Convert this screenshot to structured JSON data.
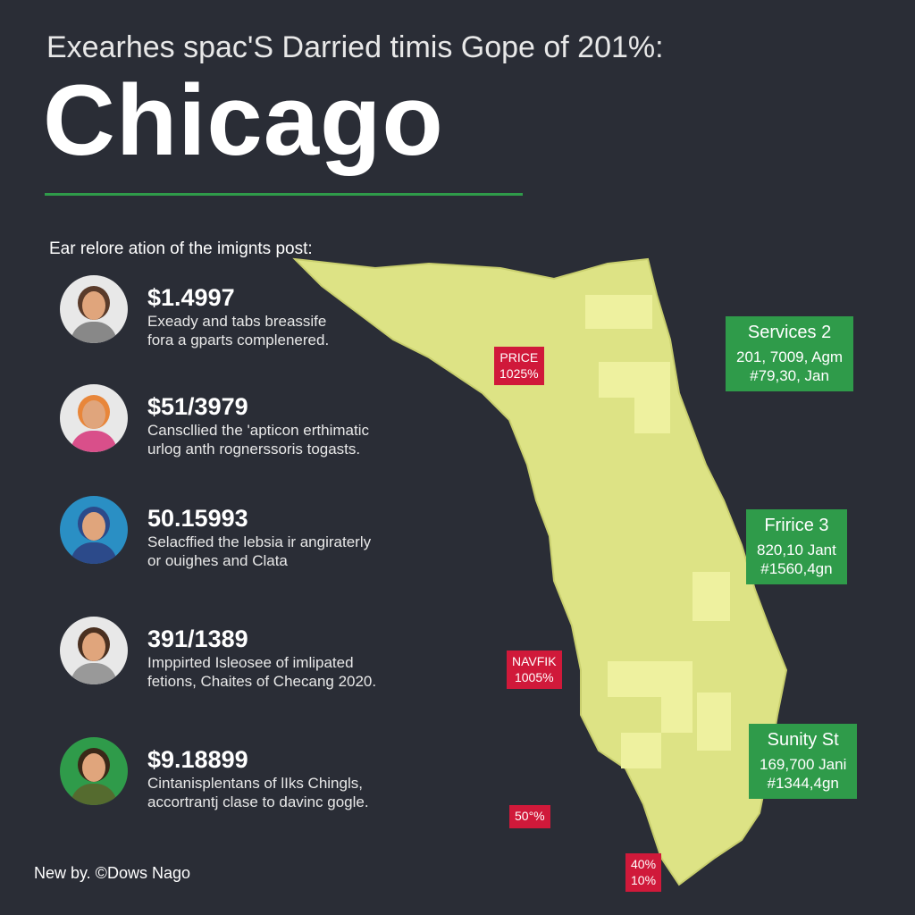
{
  "header": {
    "subtitle": "Exearhes spac'S Darried timis Gope of 201%:",
    "title": "Chicago"
  },
  "section_label": "Ear relore ation of the imignts post:",
  "items": [
    {
      "value": "$1.4997",
      "lines": [
        "Exeady and tabs breassife",
        "fora a gparts complenered."
      ]
    },
    {
      "value": "$51/3979",
      "lines": [
        "Canscllied the 'apticon erthimatic",
        "urlog anth rognerssoris togasts."
      ]
    },
    {
      "value": "50.15993",
      "lines": [
        "Selacffied the lebsia ir angiraterly",
        "or ouighes and Clata"
      ]
    },
    {
      "value": "391/1389",
      "lines": [
        "Imppirted Isleosee of imlipated",
        "fetions, Chaites of Checang 2020."
      ]
    },
    {
      "value": "$9.18899",
      "lines": [
        "Cintanisplentans of lIks Chingls,",
        "accortrantj clase to davinc gogle."
      ]
    }
  ],
  "callouts": {
    "red": [
      [
        "PRICE",
        "1025%"
      ],
      [
        "NAVFIK",
        "1005%"
      ],
      [
        "50°%"
      ],
      [
        "40%",
        "10%"
      ]
    ],
    "green": [
      [
        "Services 2",
        "201, 7009, Agm",
        "#79,30, Jan"
      ],
      [
        "Fririce 3",
        "820,10 Jant",
        "#1560,4gn"
      ],
      [
        "Sunity St",
        "169,700 Jani",
        "#1344,4gn"
      ]
    ]
  },
  "footer": "New by. ©Dows Nago"
}
